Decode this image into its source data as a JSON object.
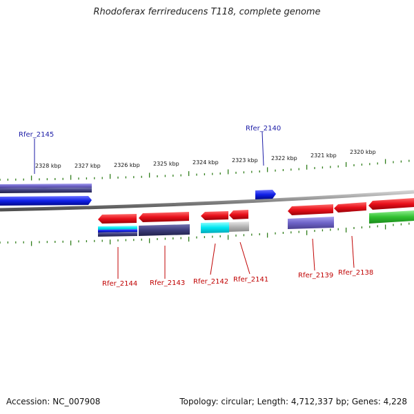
{
  "title": "Rhodoferax ferrireducens T118, complete genome",
  "footer": {
    "accession": "Accession: NC_007908",
    "summary": "Topology: circular; Length: 4,712,337 bp; Genes: 4,228"
  },
  "scale_labels": [
    "2328 kbp",
    "2327 kbp",
    "2326 kbp",
    "2325 kbp",
    "2324 kbp",
    "2323 kbp",
    "2322 kbp",
    "2321 kbp",
    "2320 kbp"
  ],
  "gene_labels_top": [
    "Rfer_2145",
    "Rfer_2140"
  ],
  "gene_labels_bottom": [
    "Rfer_2144",
    "Rfer_2143",
    "Rfer_2142",
    "Rfer_2141",
    "Rfer_2139",
    "Rfer_2138"
  ],
  "colors": {
    "backbone": "#8a8a8a",
    "forward_gene": "#0a14e6",
    "reverse_gene": "#e8101a",
    "dark_slate": "#3c3c7a",
    "cyan": "#00e5f0",
    "gray": "#b4b4b4",
    "violet": "#6e64c8",
    "green": "#30c030",
    "tick": "#2e7d18"
  }
}
